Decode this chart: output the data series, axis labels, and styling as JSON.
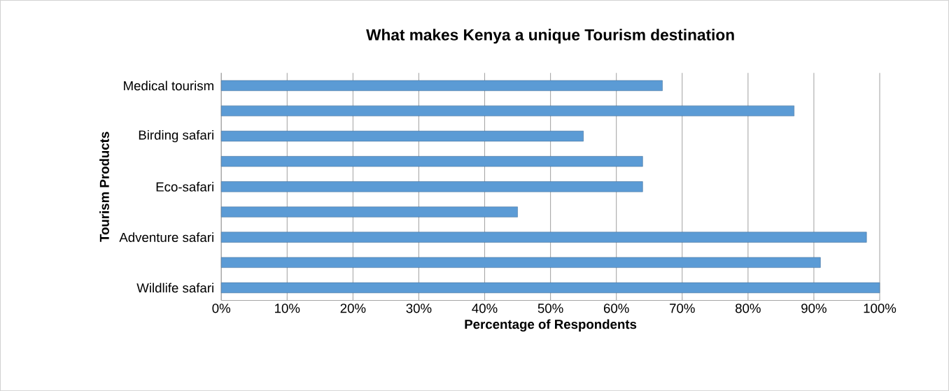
{
  "chart_data": {
    "type": "bar",
    "orientation": "horizontal",
    "title": "What makes Kenya a unique Tourism destination",
    "xlabel": "Percentage of Respondents",
    "ylabel": "Tourism Products",
    "categories": [
      "Medical tourism",
      null,
      "Birding safari",
      null,
      "Eco-safari",
      null,
      "Adventure safari",
      null,
      "Wildlife safari"
    ],
    "values": [
      67,
      87,
      55,
      64,
      64,
      45,
      98,
      91,
      100
    ],
    "color": "#5b9bd5",
    "xlim": [
      0,
      100
    ],
    "xticks": [
      {
        "value": 0,
        "label": "0%"
      },
      {
        "value": 10,
        "label": "10%"
      },
      {
        "value": 20,
        "label": "20%"
      },
      {
        "value": 30,
        "label": "30%"
      },
      {
        "value": 40,
        "label": "40%"
      },
      {
        "value": 50,
        "label": "50%"
      },
      {
        "value": 60,
        "label": "60%"
      },
      {
        "value": 70,
        "label": "70%"
      },
      {
        "value": 80,
        "label": "80%"
      },
      {
        "value": 90,
        "label": "90%"
      },
      {
        "value": 100,
        "label": "100%"
      }
    ],
    "grid": "x"
  }
}
